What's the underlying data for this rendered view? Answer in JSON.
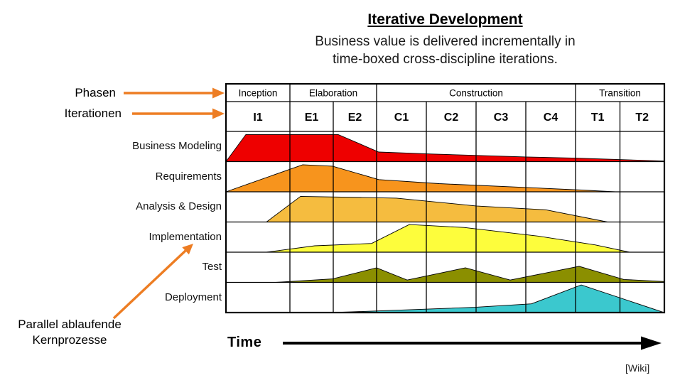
{
  "title": "Iterative Development",
  "subtitle_line1": "Business value is delivered incrementally in",
  "subtitle_line2": "time-boxed cross-discipline iterations.",
  "annotations": {
    "phasen": "Phasen",
    "iterationen": "Iterationen",
    "parallel_line1": "Parallel ablaufende",
    "parallel_line2": "Kernprozesse",
    "time": "Time",
    "source": "[Wiki]"
  },
  "colors": {
    "accent_arrow": "#ED7D23",
    "time_arrow": "#000000",
    "grid": "#000000"
  },
  "chart_data": {
    "type": "area",
    "x_axis": "Time",
    "boundaries": [
      0,
      90,
      151,
      212,
      282,
      352,
      422,
      492,
      554.5,
      617
    ],
    "phases": [
      {
        "label": "Inception",
        "iterations": [
          "I1"
        ]
      },
      {
        "label": "Elaboration",
        "iterations": [
          "E1",
          "E2"
        ]
      },
      {
        "label": "Construction",
        "iterations": [
          "C1",
          "C2",
          "C3",
          "C4"
        ]
      },
      {
        "label": "Transition",
        "iterations": [
          "T1",
          "T2"
        ]
      }
    ],
    "disciplines": [
      {
        "label": "Business Modeling",
        "color": "#EE0000",
        "effort": [
          [
            0,
            0
          ],
          [
            28,
            0.93
          ],
          [
            158,
            0.93
          ],
          [
            215,
            0.33
          ],
          [
            290,
            0.26
          ],
          [
            422,
            0.16
          ],
          [
            492,
            0.12
          ],
          [
            617,
            0.02
          ],
          [
            617,
            0
          ]
        ]
      },
      {
        "label": "Requirements",
        "color": "#F7941D",
        "effort": [
          [
            0,
            0
          ],
          [
            108,
            0.93
          ],
          [
            150,
            0.88
          ],
          [
            215,
            0.42
          ],
          [
            300,
            0.28
          ],
          [
            420,
            0.15
          ],
          [
            500,
            0.06
          ],
          [
            548,
            0
          ]
        ]
      },
      {
        "label": "Analysis & Design",
        "color": "#F5BC3F",
        "effort": [
          [
            57,
            0
          ],
          [
            105,
            0.88
          ],
          [
            240,
            0.82
          ],
          [
            352,
            0.55
          ],
          [
            450,
            0.42
          ],
          [
            537,
            0
          ]
        ]
      },
      {
        "label": "Implementation",
        "color": "#FDFD3C",
        "effort": [
          [
            57,
            0
          ],
          [
            125,
            0.22
          ],
          [
            205,
            0.3
          ],
          [
            258,
            0.95
          ],
          [
            335,
            0.85
          ],
          [
            440,
            0.55
          ],
          [
            520,
            0.25
          ],
          [
            568,
            0
          ]
        ]
      },
      {
        "label": "Test",
        "color": "#8B8F00",
        "effort": [
          [
            70,
            0
          ],
          [
            150,
            0.12
          ],
          [
            212,
            0.5
          ],
          [
            255,
            0.08
          ],
          [
            337,
            0.5
          ],
          [
            400,
            0.08
          ],
          [
            497,
            0.55
          ],
          [
            560,
            0.1
          ],
          [
            617,
            0.03
          ],
          [
            617,
            0
          ]
        ]
      },
      {
        "label": "Deployment",
        "color": "#3BC8CE",
        "effort": [
          [
            150,
            0
          ],
          [
            240,
            0.08
          ],
          [
            350,
            0.18
          ],
          [
            430,
            0.3
          ],
          [
            500,
            0.95
          ],
          [
            612,
            0.04
          ],
          [
            617,
            0
          ]
        ]
      }
    ]
  }
}
